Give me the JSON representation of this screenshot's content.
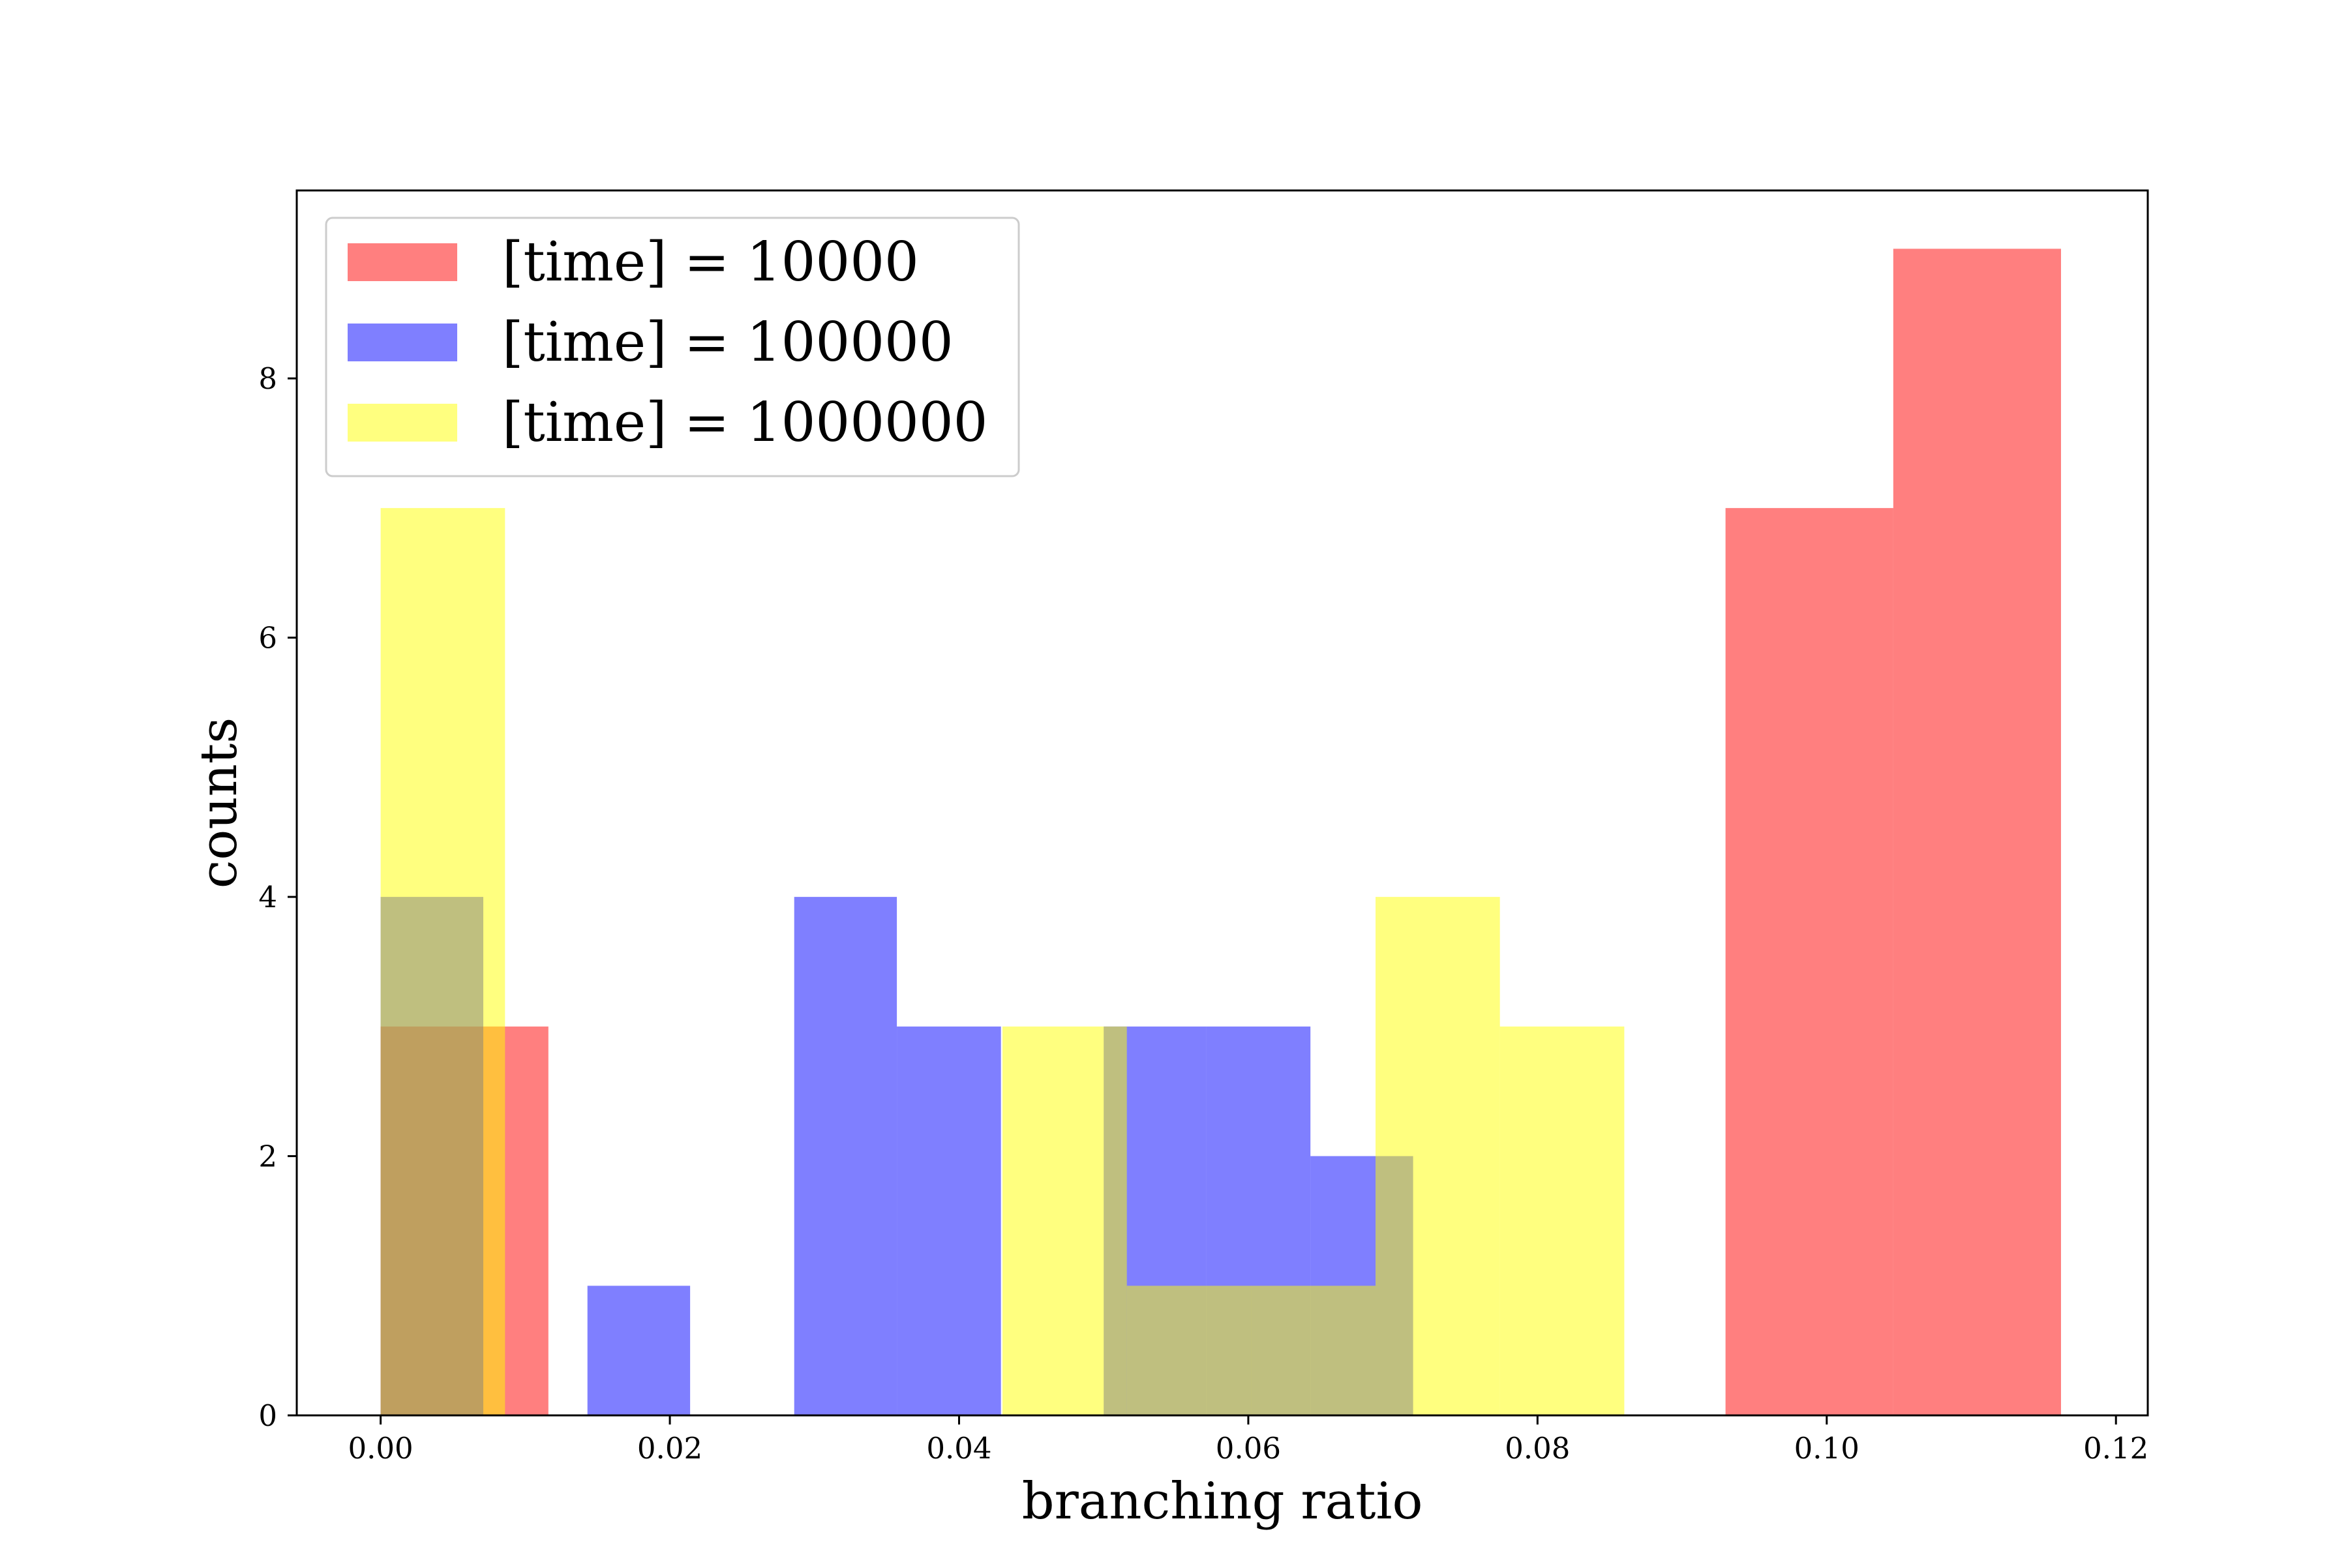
{
  "chart_data": {
    "type": "bar",
    "subtype": "histogram-overlay",
    "title": "",
    "xlabel": "branching ratio",
    "ylabel": "counts",
    "xlim": [
      -0.0058,
      0.1222
    ],
    "ylim": [
      0,
      9.45
    ],
    "xticks": [
      "0.00",
      "0.02",
      "0.04",
      "0.06",
      "0.08",
      "0.10",
      "0.12"
    ],
    "yticks": [
      "0",
      "2",
      "4",
      "6",
      "8"
    ],
    "grid": false,
    "legend_position": "upper-left",
    "bar_opacity": 0.5,
    "series": [
      {
        "name": "[time] = 10000",
        "color": "#ff0000",
        "bins": [
          {
            "x0": 0.0,
            "x1": 0.0116,
            "count": 3
          },
          {
            "x0": 0.093,
            "x1": 0.1046,
            "count": 7
          },
          {
            "x0": 0.1046,
            "x1": 0.1162,
            "count": 9
          }
        ]
      },
      {
        "name": "[time] = 100000",
        "color": "#0000ff",
        "bins": [
          {
            "x0": 0.0,
            "x1": 0.0071,
            "count": 4
          },
          {
            "x0": 0.0143,
            "x1": 0.0214,
            "count": 1
          },
          {
            "x0": 0.0286,
            "x1": 0.0357,
            "count": 4
          },
          {
            "x0": 0.0357,
            "x1": 0.0429,
            "count": 3
          },
          {
            "x0": 0.05,
            "x1": 0.0571,
            "count": 3
          },
          {
            "x0": 0.0571,
            "x1": 0.0643,
            "count": 3
          },
          {
            "x0": 0.0643,
            "x1": 0.0714,
            "count": 2
          }
        ]
      },
      {
        "name": "[time] = 1000000",
        "color": "#ffff00",
        "bins": [
          {
            "x0": 0.0,
            "x1": 0.0086,
            "count": 7
          },
          {
            "x0": 0.043,
            "x1": 0.0516,
            "count": 3
          },
          {
            "x0": 0.0516,
            "x1": 0.0602,
            "count": 1
          },
          {
            "x0": 0.0602,
            "x1": 0.0688,
            "count": 1
          },
          {
            "x0": 0.0688,
            "x1": 0.0774,
            "count": 4
          },
          {
            "x0": 0.0774,
            "x1": 0.086,
            "count": 3
          }
        ]
      }
    ]
  }
}
